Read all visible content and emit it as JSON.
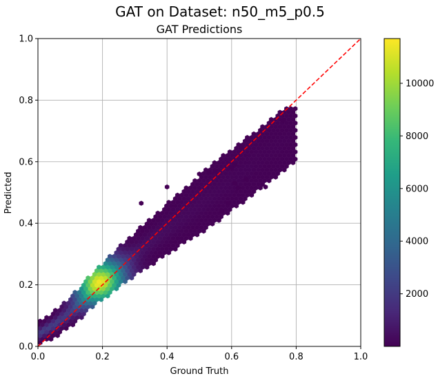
{
  "figure": {
    "suptitle": "GAT on Dataset: n50_m5_p0.5"
  },
  "chart_data": {
    "type": "hexbin",
    "title": "GAT Predictions",
    "xlabel": "Ground Truth",
    "ylabel": "Predicted",
    "xlim": [
      0,
      1
    ],
    "ylim": [
      0,
      1
    ],
    "grid": true,
    "x_ticks": [
      "0.0",
      "0.2",
      "0.4",
      "0.6",
      "0.8",
      "1.0"
    ],
    "y_ticks": [
      "0.0",
      "0.2",
      "0.4",
      "0.6",
      "0.8",
      "1.0"
    ],
    "reference_line": {
      "label": "",
      "x": [
        0,
        1
      ],
      "y": [
        0,
        1
      ],
      "color": "#ff0000",
      "style": "dashed"
    },
    "colorbar": {
      "colormap": "viridis",
      "range": [
        1,
        11700
      ],
      "ticks": [
        "2000",
        "4000",
        "6000",
        "8000",
        "10000"
      ],
      "tick_values": [
        2000,
        4000,
        6000,
        8000,
        10000
      ]
    },
    "density_ridge": {
      "x": [
        0.0,
        0.05,
        0.1,
        0.15,
        0.18,
        0.2,
        0.25,
        0.3,
        0.35,
        0.4,
        0.5,
        0.6
      ],
      "y": [
        0.04,
        0.07,
        0.11,
        0.16,
        0.2,
        0.21,
        0.255,
        0.3,
        0.34,
        0.38,
        0.46,
        0.54
      ]
    },
    "peak_count_location": [
      0.19,
      0.21
    ],
    "outliers": [
      [
        0.76,
        0.735
      ],
      [
        0.63,
        0.645
      ],
      [
        0.705,
        0.518
      ],
      [
        0.645,
        0.542
      ],
      [
        0.61,
        0.59
      ],
      [
        0.6,
        0.58
      ],
      [
        0.61,
        0.53
      ],
      [
        0.62,
        0.515
      ],
      [
        0.59,
        0.465
      ],
      [
        0.57,
        0.44
      ],
      [
        0.32,
        0.465
      ],
      [
        0.4,
        0.518
      ],
      [
        0.5,
        0.56
      ],
      [
        0.53,
        0.565
      ],
      [
        0.55,
        0.57
      ]
    ]
  },
  "colors": {
    "reference_line": "#ff0000",
    "grid": "#b0b0b0",
    "viridis": [
      "#440154",
      "#482878",
      "#3e4989",
      "#31688e",
      "#26828e",
      "#1f9e89",
      "#35b779",
      "#6ece58",
      "#b5de2b",
      "#fde725"
    ]
  }
}
